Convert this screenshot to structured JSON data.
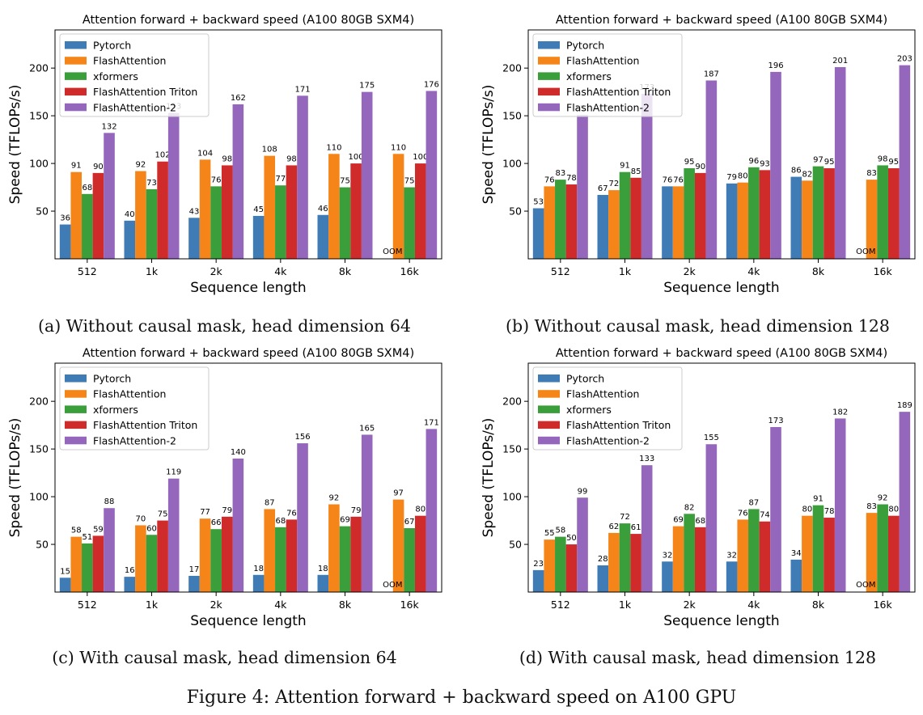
{
  "figure_caption": "Figure 4: Attention forward + backward speed on A100 GPU",
  "chart_data": [
    {
      "type": "bar",
      "title": "Attention forward + backward speed (A100 80GB SXM4)",
      "xlabel": "Sequence length",
      "ylabel": "Speed (TFLOPs/s)",
      "ylim": [
        0,
        240
      ],
      "yticks": [
        50,
        100,
        150,
        200
      ],
      "legend_position": "top-left",
      "grid": false,
      "categories": [
        "512",
        "1k",
        "2k",
        "4k",
        "8k",
        "16k"
      ],
      "series": [
        {
          "name": "Pytorch",
          "color": "#3f7bb5",
          "values": [
            36,
            40,
            43,
            45,
            46,
            null
          ]
        },
        {
          "name": "FlashAttention",
          "color": "#f58518",
          "values": [
            91,
            92,
            104,
            108,
            110,
            110
          ]
        },
        {
          "name": "xformers",
          "color": "#3a9f3a",
          "values": [
            68,
            73,
            76,
            77,
            75,
            75
          ]
        },
        {
          "name": "FlashAttention Triton",
          "color": "#d02b2b",
          "values": [
            90,
            102,
            98,
            98,
            100,
            100
          ]
        },
        {
          "name": "FlashAttention-2",
          "color": "#9467bd",
          "values": [
            132,
            153,
            162,
            171,
            175,
            176
          ]
        }
      ],
      "annotations": [
        {
          "category": "16k",
          "text": "OOM"
        }
      ],
      "caption": "(a) Without causal mask, head dimension 64"
    },
    {
      "type": "bar",
      "title": "Attention forward + backward speed (A100 80GB SXM4)",
      "xlabel": "Sequence length",
      "ylabel": "Speed (TFLOPs/s)",
      "ylim": [
        0,
        240
      ],
      "yticks": [
        50,
        100,
        150,
        200
      ],
      "legend_position": "top-left",
      "grid": false,
      "categories": [
        "512",
        "1k",
        "2k",
        "4k",
        "8k",
        "16k"
      ],
      "series": [
        {
          "name": "Pytorch",
          "color": "#3f7bb5",
          "values": [
            53,
            67,
            76,
            79,
            86,
            null
          ]
        },
        {
          "name": "FlashAttention",
          "color": "#f58518",
          "values": [
            76,
            72,
            76,
            80,
            82,
            83
          ]
        },
        {
          "name": "xformers",
          "color": "#3a9f3a",
          "values": [
            83,
            91,
            95,
            96,
            97,
            98
          ]
        },
        {
          "name": "FlashAttention Triton",
          "color": "#d02b2b",
          "values": [
            78,
            85,
            90,
            93,
            95,
            95
          ]
        },
        {
          "name": "FlashAttention-2",
          "color": "#9467bd",
          "values": [
            151,
            173,
            187,
            196,
            201,
            203
          ]
        }
      ],
      "annotations": [
        {
          "category": "16k",
          "text": "OOM"
        }
      ],
      "caption": "(b) Without causal mask, head dimension 128"
    },
    {
      "type": "bar",
      "title": "Attention forward + backward speed (A100 80GB SXM4)",
      "xlabel": "Sequence length",
      "ylabel": "Speed (TFLOPs/s)",
      "ylim": [
        0,
        240
      ],
      "yticks": [
        50,
        100,
        150,
        200
      ],
      "legend_position": "top-left",
      "grid": false,
      "categories": [
        "512",
        "1k",
        "2k",
        "4k",
        "8k",
        "16k"
      ],
      "series": [
        {
          "name": "Pytorch",
          "color": "#3f7bb5",
          "values": [
            15,
            16,
            17,
            18,
            18,
            null
          ]
        },
        {
          "name": "FlashAttention",
          "color": "#f58518",
          "values": [
            58,
            70,
            77,
            87,
            92,
            97
          ]
        },
        {
          "name": "xformers",
          "color": "#3a9f3a",
          "values": [
            51,
            60,
            66,
            68,
            69,
            67
          ]
        },
        {
          "name": "FlashAttention Triton",
          "color": "#d02b2b",
          "values": [
            59,
            75,
            79,
            76,
            79,
            80
          ]
        },
        {
          "name": "FlashAttention-2",
          "color": "#9467bd",
          "values": [
            88,
            119,
            140,
            156,
            165,
            171
          ]
        }
      ],
      "annotations": [
        {
          "category": "16k",
          "text": "OOM"
        }
      ],
      "caption": "(c) With causal mask, head dimension 64"
    },
    {
      "type": "bar",
      "title": "Attention forward + backward speed (A100 80GB SXM4)",
      "xlabel": "Sequence length",
      "ylabel": "Speed (TFLOPs/s)",
      "ylim": [
        0,
        240
      ],
      "yticks": [
        50,
        100,
        150,
        200
      ],
      "legend_position": "top-left",
      "grid": false,
      "categories": [
        "512",
        "1k",
        "2k",
        "4k",
        "8k",
        "16k"
      ],
      "series": [
        {
          "name": "Pytorch",
          "color": "#3f7bb5",
          "values": [
            23,
            28,
            32,
            32,
            34,
            null
          ]
        },
        {
          "name": "FlashAttention",
          "color": "#f58518",
          "values": [
            55,
            62,
            69,
            76,
            80,
            83
          ]
        },
        {
          "name": "xformers",
          "color": "#3a9f3a",
          "values": [
            58,
            72,
            82,
            87,
            91,
            92
          ]
        },
        {
          "name": "FlashAttention Triton",
          "color": "#d02b2b",
          "values": [
            50,
            61,
            68,
            74,
            78,
            80
          ]
        },
        {
          "name": "FlashAttention-2",
          "color": "#9467bd",
          "values": [
            99,
            133,
            155,
            173,
            182,
            189
          ]
        }
      ],
      "annotations": [
        {
          "category": "16k",
          "text": "OOM"
        }
      ],
      "caption": "(d) With causal mask, head dimension 128"
    }
  ]
}
